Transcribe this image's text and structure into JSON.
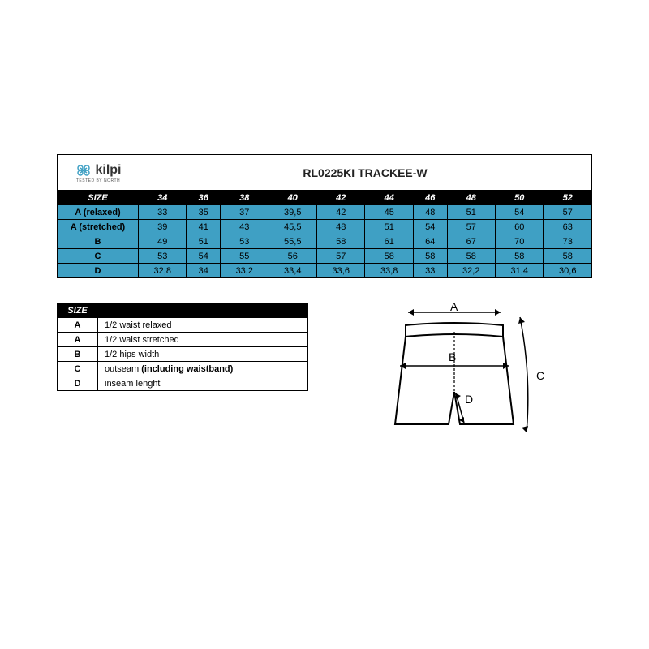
{
  "brand": "kilpi",
  "tagline": "TESTED BY NORTH",
  "product": "RL0225KI   TRACKEE-W",
  "sizeLabel": "SIZE",
  "sizes": [
    "34",
    "36",
    "38",
    "40",
    "42",
    "44",
    "46",
    "48",
    "50",
    "52"
  ],
  "rows": [
    {
      "label": "A (relaxed)",
      "vals": [
        "33",
        "35",
        "37",
        "39,5",
        "42",
        "45",
        "48",
        "51",
        "54",
        "57"
      ]
    },
    {
      "label": "A (stretched)",
      "vals": [
        "39",
        "41",
        "43",
        "45,5",
        "48",
        "51",
        "54",
        "57",
        "60",
        "63"
      ]
    },
    {
      "label": "B",
      "vals": [
        "49",
        "51",
        "53",
        "55,5",
        "58",
        "61",
        "64",
        "67",
        "70",
        "73"
      ]
    },
    {
      "label": "C",
      "vals": [
        "53",
        "54",
        "55",
        "56",
        "57",
        "58",
        "58",
        "58",
        "58",
        "58"
      ]
    },
    {
      "label": "D",
      "vals": [
        "32,8",
        "34",
        "33,2",
        "33,4",
        "33,6",
        "33,8",
        "33",
        "32,2",
        "31,4",
        "30,6"
      ]
    }
  ],
  "legendHeader": "SIZE",
  "legend": [
    {
      "k": "A",
      "d": "1/2 waist   relaxed"
    },
    {
      "k": "A",
      "d": "1/2 waist  stretched"
    },
    {
      "k": "B",
      "d": "1/2 hips width"
    },
    {
      "k": "C",
      "d": "outseam  <b>(including waistband)</b>"
    },
    {
      "k": "D",
      "d": "inseam lenght"
    }
  ],
  "dia": {
    "A": "A",
    "B": "B",
    "C": "C",
    "D": "D"
  }
}
